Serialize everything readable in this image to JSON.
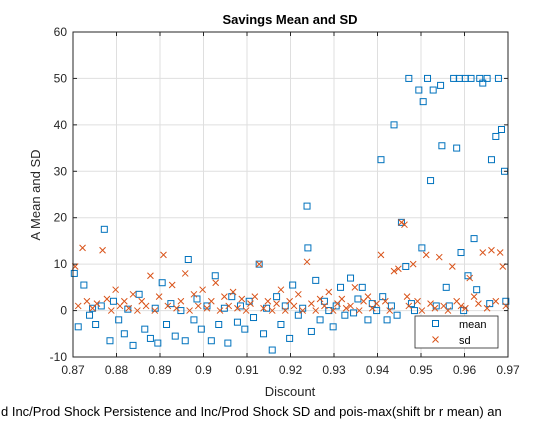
{
  "chart_data": {
    "type": "scatter",
    "title": "Savings Mean and SD",
    "xlabel": "Discount",
    "ylabel": "A Mean and SD",
    "caption": "d Inc/Prod Shock Persistence and Inc/Prod Shock SD and pois-max(shift br r mean) an",
    "xlim": [
      0.87,
      0.97
    ],
    "ylim": [
      -10,
      60
    ],
    "xticks": [
      0.87,
      0.88,
      0.89,
      0.9,
      0.91,
      0.92,
      0.93,
      0.94,
      0.95,
      0.96,
      0.97
    ],
    "xtick_labels": [
      "0.87",
      "0.88",
      "0.89",
      "0.9",
      "0.91",
      "0.92",
      "0.93",
      "0.94",
      "0.95",
      "0.96",
      "0.97"
    ],
    "yticks": [
      -10,
      0,
      10,
      20,
      30,
      40,
      50,
      60
    ],
    "ytick_labels": [
      "-10",
      "0",
      "10",
      "20",
      "30",
      "40",
      "50",
      "60"
    ],
    "grid": true,
    "legend_position": "bottom-right",
    "colors": {
      "mean": "#0072BD",
      "sd": "#D95319"
    },
    "series": [
      {
        "name": "mean",
        "marker": "square",
        "points": [
          [
            0.8703,
            8.0
          ],
          [
            0.8712,
            -3.5
          ],
          [
            0.8725,
            5.5
          ],
          [
            0.8738,
            -1.0
          ],
          [
            0.8745,
            0.5
          ],
          [
            0.8752,
            -3.0
          ],
          [
            0.8765,
            1.0
          ],
          [
            0.8772,
            17.5
          ],
          [
            0.8785,
            -6.5
          ],
          [
            0.8793,
            2.0
          ],
          [
            0.8805,
            -2.0
          ],
          [
            0.8818,
            -5.0
          ],
          [
            0.8826,
            0.3
          ],
          [
            0.8838,
            -7.5
          ],
          [
            0.8852,
            3.5
          ],
          [
            0.8865,
            -4.0
          ],
          [
            0.8878,
            -6.0
          ],
          [
            0.8889,
            0.5
          ],
          [
            0.8895,
            -7.0
          ],
          [
            0.8905,
            6.0
          ],
          [
            0.8915,
            -3.0
          ],
          [
            0.8925,
            1.5
          ],
          [
            0.8935,
            -5.5
          ],
          [
            0.8948,
            0.0
          ],
          [
            0.8958,
            -6.5
          ],
          [
            0.8965,
            11.0
          ],
          [
            0.8978,
            -2.0
          ],
          [
            0.8985,
            2.5
          ],
          [
            0.8995,
            -4.0
          ],
          [
            0.9008,
            1.0
          ],
          [
            0.9018,
            -6.5
          ],
          [
            0.9027,
            7.5
          ],
          [
            0.9035,
            -3.0
          ],
          [
            0.9048,
            0.5
          ],
          [
            0.9056,
            -7.0
          ],
          [
            0.9065,
            3.0
          ],
          [
            0.9078,
            -2.5
          ],
          [
            0.9085,
            1.0
          ],
          [
            0.9095,
            -4.0
          ],
          [
            0.9105,
            2.0
          ],
          [
            0.9115,
            -1.5
          ],
          [
            0.9128,
            10.0
          ],
          [
            0.9138,
            -5.0
          ],
          [
            0.9145,
            0.5
          ],
          [
            0.9158,
            -8.5
          ],
          [
            0.9168,
            3.0
          ],
          [
            0.9178,
            -3.0
          ],
          [
            0.9188,
            1.0
          ],
          [
            0.9198,
            -6.0
          ],
          [
            0.9205,
            5.5
          ],
          [
            0.9218,
            -1.0
          ],
          [
            0.9228,
            0.5
          ],
          [
            0.9238,
            22.5
          ],
          [
            0.924,
            13.5
          ],
          [
            0.9248,
            -4.5
          ],
          [
            0.9258,
            6.5
          ],
          [
            0.9268,
            -2.0
          ],
          [
            0.9278,
            2.0
          ],
          [
            0.9288,
            0.0
          ],
          [
            0.9298,
            -3.5
          ],
          [
            0.9305,
            1.0
          ],
          [
            0.9315,
            5.0
          ],
          [
            0.9325,
            -1.0
          ],
          [
            0.9338,
            7.0
          ],
          [
            0.9345,
            -0.5
          ],
          [
            0.9355,
            2.5
          ],
          [
            0.9365,
            5.0
          ],
          [
            0.9378,
            -2.0
          ],
          [
            0.9388,
            1.5
          ],
          [
            0.9398,
            0.0
          ],
          [
            0.9408,
            32.5
          ],
          [
            0.9412,
            3.0
          ],
          [
            0.9422,
            -2.0
          ],
          [
            0.9432,
            1.0
          ],
          [
            0.9438,
            40.0
          ],
          [
            0.9445,
            -1.0
          ],
          [
            0.9455,
            19.0
          ],
          [
            0.9465,
            9.5
          ],
          [
            0.9472,
            50.0
          ],
          [
            0.9478,
            1.5
          ],
          [
            0.9485,
            0.0
          ],
          [
            0.9495,
            47.5
          ],
          [
            0.9502,
            13.5
          ],
          [
            0.9505,
            45.0
          ],
          [
            0.9515,
            50.0
          ],
          [
            0.9522,
            28.0
          ],
          [
            0.9528,
            47.5
          ],
          [
            0.9535,
            1.0
          ],
          [
            0.9545,
            48.5
          ],
          [
            0.9548,
            35.5
          ],
          [
            0.9558,
            5.0
          ],
          [
            0.9565,
            1.0
          ],
          [
            0.9575,
            50.0
          ],
          [
            0.9582,
            35.0
          ],
          [
            0.9588,
            50.0
          ],
          [
            0.9592,
            12.5
          ],
          [
            0.9598,
            0.0
          ],
          [
            0.9602,
            50.0
          ],
          [
            0.9608,
            7.5
          ],
          [
            0.9615,
            50.0
          ],
          [
            0.9622,
            15.5
          ],
          [
            0.9628,
            4.5
          ],
          [
            0.9635,
            50.0
          ],
          [
            0.9642,
            49.0
          ],
          [
            0.9652,
            50.0
          ],
          [
            0.9658,
            1.5
          ],
          [
            0.9662,
            32.5
          ],
          [
            0.9672,
            37.5
          ],
          [
            0.9678,
            50.0
          ],
          [
            0.9685,
            39.0
          ],
          [
            0.9692,
            30.0
          ],
          [
            0.9695,
            2.0
          ]
        ]
      },
      {
        "name": "sd",
        "marker": "x",
        "points": [
          [
            0.8705,
            9.5
          ],
          [
            0.8712,
            1.0
          ],
          [
            0.8722,
            13.5
          ],
          [
            0.8732,
            2.0
          ],
          [
            0.8745,
            0.5
          ],
          [
            0.8755,
            1.5
          ],
          [
            0.8768,
            13.0
          ],
          [
            0.8778,
            2.5
          ],
          [
            0.8788,
            0.0
          ],
          [
            0.8798,
            4.5
          ],
          [
            0.8808,
            1.0
          ],
          [
            0.8818,
            2.0
          ],
          [
            0.8828,
            0.5
          ],
          [
            0.8838,
            3.5
          ],
          [
            0.8848,
            0.0
          ],
          [
            0.8858,
            2.0
          ],
          [
            0.8868,
            1.0
          ],
          [
            0.8878,
            7.5
          ],
          [
            0.8888,
            0.0
          ],
          [
            0.8898,
            3.0
          ],
          [
            0.8908,
            12.0
          ],
          [
            0.8918,
            1.0
          ],
          [
            0.8928,
            5.5
          ],
          [
            0.8938,
            0.5
          ],
          [
            0.8948,
            2.0
          ],
          [
            0.8958,
            8.0
          ],
          [
            0.8968,
            0.0
          ],
          [
            0.8978,
            3.5
          ],
          [
            0.8988,
            1.0
          ],
          [
            0.8998,
            4.5
          ],
          [
            0.9008,
            0.5
          ],
          [
            0.9018,
            2.0
          ],
          [
            0.9028,
            6.0
          ],
          [
            0.9038,
            0.0
          ],
          [
            0.9048,
            3.0
          ],
          [
            0.9058,
            1.0
          ],
          [
            0.9068,
            4.0
          ],
          [
            0.9078,
            0.5
          ],
          [
            0.9088,
            2.5
          ],
          [
            0.9098,
            0.0
          ],
          [
            0.9108,
            1.5
          ],
          [
            0.9118,
            3.0
          ],
          [
            0.9128,
            10.0
          ],
          [
            0.9138,
            0.5
          ],
          [
            0.9148,
            2.0
          ],
          [
            0.9158,
            0.0
          ],
          [
            0.9168,
            1.5
          ],
          [
            0.9178,
            4.5
          ],
          [
            0.9188,
            0.0
          ],
          [
            0.9198,
            2.0
          ],
          [
            0.9208,
            1.0
          ],
          [
            0.9218,
            3.5
          ],
          [
            0.9228,
            0.0
          ],
          [
            0.9238,
            10.5
          ],
          [
            0.9248,
            1.5
          ],
          [
            0.9258,
            0.0
          ],
          [
            0.9268,
            2.5
          ],
          [
            0.9278,
            1.0
          ],
          [
            0.9288,
            4.0
          ],
          [
            0.9298,
            0.0
          ],
          [
            0.9308,
            1.5
          ],
          [
            0.9318,
            2.5
          ],
          [
            0.9328,
            0.5
          ],
          [
            0.9338,
            1.0
          ],
          [
            0.9348,
            5.0
          ],
          [
            0.9358,
            0.0
          ],
          [
            0.9368,
            2.0
          ],
          [
            0.9378,
            3.0
          ],
          [
            0.9388,
            0.5
          ],
          [
            0.9398,
            1.5
          ],
          [
            0.9408,
            12.0
          ],
          [
            0.9418,
            2.0
          ],
          [
            0.9428,
            0.0
          ],
          [
            0.9438,
            8.5
          ],
          [
            0.9448,
            9.0
          ],
          [
            0.9455,
            19.0
          ],
          [
            0.9462,
            18.5
          ],
          [
            0.9468,
            3.0
          ],
          [
            0.9472,
            1.0
          ],
          [
            0.9482,
            10.0
          ],
          [
            0.9492,
            2.0
          ],
          [
            0.9502,
            0.0
          ],
          [
            0.9512,
            12.0
          ],
          [
            0.9522,
            1.5
          ],
          [
            0.9532,
            0.5
          ],
          [
            0.9542,
            11.5
          ],
          [
            0.9552,
            1.0
          ],
          [
            0.9562,
            0.0
          ],
          [
            0.9572,
            9.5
          ],
          [
            0.9582,
            2.0
          ],
          [
            0.9592,
            1.0
          ],
          [
            0.9602,
            0.5
          ],
          [
            0.9612,
            7.0
          ],
          [
            0.9622,
            3.0
          ],
          [
            0.9632,
            1.5
          ],
          [
            0.9642,
            12.5
          ],
          [
            0.9652,
            0.5
          ],
          [
            0.9662,
            13.0
          ],
          [
            0.9672,
            2.0
          ],
          [
            0.9682,
            12.5
          ],
          [
            0.9688,
            9.5
          ],
          [
            0.9695,
            1.0
          ]
        ]
      }
    ]
  }
}
